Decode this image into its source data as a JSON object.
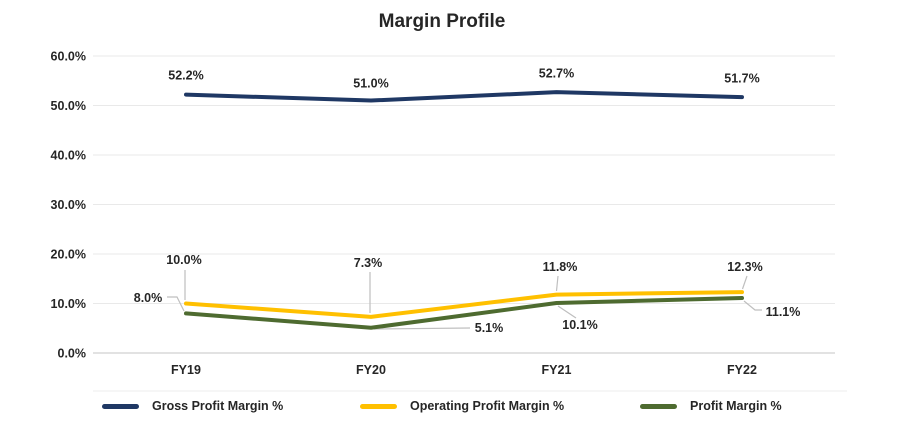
{
  "chart_data": {
    "type": "line",
    "title": "Margin Profile",
    "categories": [
      "FY19",
      "FY20",
      "FY21",
      "FY22"
    ],
    "series": [
      {
        "name": "Gross Profit Margin %",
        "color": "#1f3864",
        "values": [
          52.2,
          51.0,
          52.7,
          51.7
        ],
        "labels": [
          "52.2%",
          "51.0%",
          "52.7%",
          "51.7%"
        ]
      },
      {
        "name": "Operating Profit Margin %",
        "color": "#ffc000",
        "values": [
          10.0,
          7.3,
          11.8,
          12.3
        ],
        "labels": [
          "10.0%",
          "7.3%",
          "11.8%",
          "12.3%"
        ]
      },
      {
        "name": "Profit Margin %",
        "color": "#4e6b30",
        "values": [
          8.0,
          5.1,
          10.1,
          11.1
        ],
        "labels": [
          "8.0%",
          "5.1%",
          "10.1%",
          "11.1%"
        ]
      }
    ],
    "xlabel": "",
    "ylabel": "",
    "ylim": [
      0,
      60
    ],
    "yticks": [
      0,
      10,
      20,
      30,
      40,
      50,
      60
    ],
    "ytick_labels": [
      "0.0%",
      "10.0%",
      "20.0%",
      "30.0%",
      "40.0%",
      "50.0%",
      "60.0%"
    ],
    "grid": true,
    "legend_position": "bottom",
    "colors": {
      "gridline": "#e9e9e9",
      "axis_line": "#c4c4c4",
      "leader_line": "#bfbfbf",
      "text": "#262626"
    }
  }
}
